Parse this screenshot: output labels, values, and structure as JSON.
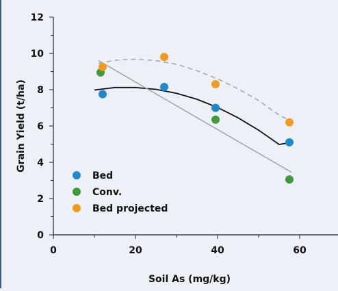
{
  "chart_data": {
    "type": "scatter",
    "xlabel": "Soil As (mg/kg)",
    "ylabel": "Grain Yield (t/ha)",
    "xlim": [
      0,
      70
    ],
    "ylim": [
      0,
      12
    ],
    "xticks": [
      0,
      20,
      40,
      60
    ],
    "yticks": [
      0,
      2,
      4,
      6,
      8,
      10,
      12
    ],
    "grid": false,
    "legend_position": "bottom-left",
    "series": [
      {
        "name": "Bed",
        "color": "#1f8ac9",
        "x": [
          12,
          27,
          39.5,
          57.5
        ],
        "y": [
          7.75,
          8.15,
          7.0,
          5.1
        ]
      },
      {
        "name": "Conv.",
        "color": "#3f9a3a",
        "x": [
          11.5,
          39.5,
          57.5
        ],
        "y": [
          8.95,
          6.35,
          3.05
        ]
      },
      {
        "name": "Bed projected",
        "color": "#f39a1e",
        "x": [
          12,
          27,
          39.5,
          57.5
        ],
        "y": [
          9.25,
          9.8,
          8.3,
          6.2
        ]
      }
    ],
    "trendlines": [
      {
        "series": "Bed",
        "kind": "quadratic",
        "style": "solid",
        "color": "#111111",
        "x": [
          10,
          15,
          20,
          25,
          30,
          35,
          40,
          45,
          50,
          55,
          58
        ],
        "y": [
          7.98,
          8.12,
          8.12,
          8.02,
          7.8,
          7.47,
          7.02,
          6.45,
          5.77,
          4.98,
          5.1
        ]
      },
      {
        "series": "Conv.",
        "kind": "linear",
        "style": "solid",
        "color": "#a8a8a8",
        "x": [
          11,
          58
        ],
        "y": [
          9.6,
          3.45
        ]
      },
      {
        "series": "Bed projected",
        "kind": "quadratic",
        "style": "dashed",
        "color": "#a8a8a8",
        "x": [
          11,
          15,
          20,
          25,
          30,
          35,
          40,
          45,
          50,
          55,
          58
        ],
        "y": [
          9.45,
          9.62,
          9.68,
          9.6,
          9.4,
          9.05,
          8.6,
          8.05,
          7.4,
          6.6,
          6.25
        ]
      }
    ]
  }
}
